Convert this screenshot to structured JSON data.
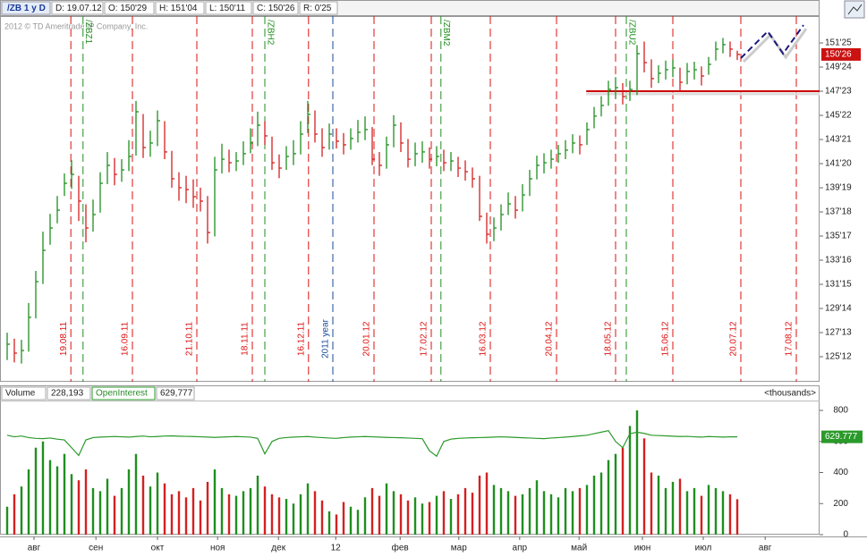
{
  "header": {
    "symbol": "/ZB 1 y D",
    "date": "D: 19.07.12",
    "open": "O: 150'29",
    "high": "H: 151'04",
    "low": "L: 150'11",
    "close": "C: 150'26",
    "range": "R: 0'25",
    "copyright": "2012 © TD Ameritrade IP Company, Inc."
  },
  "chart_data": [
    {
      "type": "ohlc",
      "up_color": "#1f8f1f",
      "down_color": "#d42020",
      "xlim": [
        -1,
        113.5
      ],
      "ylim": [
        123.27,
        154.04
      ],
      "high": [
        127.4,
        126.9,
        126.8,
        129.9,
        132.6,
        135.9,
        137.4,
        138.9,
        140.8,
        141.9,
        140.6,
        138.2,
        138.6,
        140.9,
        142.6,
        142.1,
        142.0,
        143.6,
        146.9,
        145.8,
        144.4,
        146.1,
        145.2,
        142.7,
        140.9,
        140.6,
        140.3,
        139.6,
        138.9,
        142.2,
        143.3,
        142.8,
        142.6,
        143.5,
        144.6,
        146.0,
        145.2,
        143.9,
        142.4,
        143.1,
        143.6,
        145.2,
        146.9,
        146.1,
        144.6,
        145.0,
        144.6,
        144.2,
        144.6,
        145.3,
        145.6,
        144.7,
        142.6,
        143.9,
        145.7,
        145.1,
        143.7,
        143.4,
        143.5,
        143.0,
        143.1,
        142.8,
        142.6,
        142.2,
        141.9,
        141.3,
        140.6,
        137.5,
        137.1,
        138.2,
        139.2,
        138.9,
        139.9,
        141.1,
        142.3,
        142.5,
        142.8,
        143.2,
        143.6,
        144.1,
        144.0,
        145.1,
        146.4,
        147.3,
        148.6,
        148.9,
        148.4,
        148.6,
        151.6,
        151.9,
        150.4,
        149.9,
        150.3,
        150.4,
        149.7,
        150.1,
        150.2,
        149.8,
        150.6,
        151.9,
        152.2,
        151.9,
        151.125
      ],
      "low": [
        125.1,
        124.9,
        124.8,
        125.8,
        128.6,
        131.5,
        134.8,
        136.6,
        138.9,
        139.5,
        136.8,
        135.0,
        135.9,
        137.5,
        139.9,
        139.8,
        140.1,
        141.0,
        142.3,
        142.1,
        142.2,
        143.1,
        142.0,
        139.6,
        138.5,
        138.3,
        137.9,
        137.6,
        134.9,
        135.5,
        140.8,
        140.9,
        141.0,
        141.5,
        142.5,
        143.1,
        143.2,
        141.1,
        140.4,
        141.1,
        141.5,
        142.4,
        144.2,
        143.4,
        142.2,
        142.8,
        142.9,
        142.4,
        142.8,
        143.4,
        143.6,
        141.5,
        140.6,
        141.2,
        143.0,
        142.6,
        141.3,
        141.4,
        141.7,
        141.2,
        141.4,
        141.0,
        141.0,
        140.5,
        140.2,
        139.6,
        136.8,
        134.9,
        135.1,
        136.0,
        137.3,
        137.0,
        137.6,
        138.9,
        140.3,
        140.8,
        141.2,
        141.7,
        142.0,
        142.5,
        142.4,
        143.2,
        144.6,
        145.6,
        146.5,
        147.1,
        146.6,
        146.9,
        147.4,
        149.3,
        148.0,
        148.4,
        148.7,
        148.9,
        147.7,
        148.3,
        148.7,
        148.2,
        149.1,
        150.3,
        150.9,
        150.6,
        150.34375
      ],
      "close": [
        126.43,
        125.68,
        125.9,
        128.69,
        131.7,
        134.33,
        136.21,
        137.71,
        139.97,
        140.72,
        138.47,
        136.21,
        137.34,
        139.97,
        141.48,
        140.72,
        141.1,
        142.23,
        145.99,
        142.98,
        143.36,
        145.24,
        142.61,
        140.35,
        139.6,
        139.45,
        138.84,
        138.47,
        135.83,
        141.1,
        142.0,
        141.7,
        141.85,
        142.46,
        143.36,
        144.86,
        143.96,
        141.7,
        141.25,
        142.23,
        142.46,
        144.11,
        145.77,
        144.11,
        142.98,
        144.11,
        143.51,
        143.21,
        143.74,
        144.26,
        144.49,
        142.0,
        141.48,
        143.21,
        144.86,
        143.36,
        142.0,
        142.46,
        142.61,
        142.0,
        142.23,
        141.7,
        141.85,
        141.25,
        140.95,
        140.35,
        137.19,
        135.68,
        136.21,
        137.34,
        138.24,
        137.71,
        138.99,
        140.35,
        141.48,
        141.7,
        142.0,
        142.46,
        142.76,
        143.36,
        143.21,
        144.49,
        145.62,
        146.52,
        147.87,
        148.02,
        147.27,
        147.87,
        150.88,
        150.13,
        148.78,
        149.23,
        149.53,
        149.68,
        148.47,
        149.38,
        149.53,
        149.0,
        149.98,
        151.26,
        151.64,
        151.26,
        150.8125
      ],
      "yticks": [
        {
          "value": 125.375,
          "label": "125'12"
        },
        {
          "value": 127.40625,
          "label": "127'13"
        },
        {
          "value": 129.4375,
          "label": "129'14"
        },
        {
          "value": 131.46875,
          "label": "131'15"
        },
        {
          "value": 133.5,
          "label": "133'16"
        },
        {
          "value": 135.53125,
          "label": "135'17"
        },
        {
          "value": 137.5625,
          "label": "137'18"
        },
        {
          "value": 139.59375,
          "label": "139'19"
        },
        {
          "value": 141.625,
          "label": "141'20"
        },
        {
          "value": 143.65625,
          "label": "143'21"
        },
        {
          "value": 145.6875,
          "label": "145'22"
        },
        {
          "value": 147.71875,
          "label": "147'23"
        },
        {
          "value": 149.75,
          "label": "149'24"
        },
        {
          "value": 151.78125,
          "label": "151'25"
        }
      ],
      "last_price": {
        "value": 150.8125,
        "label": "150'26"
      },
      "last_color": "#cc1111",
      "support": {
        "value": 147.72,
        "from": 80.9,
        "color": "#cc0000"
      },
      "projection": {
        "x": [
          102.5,
          106.25,
          108.4,
          111.25
        ],
        "y": [
          150.5,
          152.75,
          150.88,
          153.28
        ],
        "color": "#1a1a7a"
      },
      "events": [
        {
          "label": "19.08.11",
          "x": 8.9,
          "color": "#dd1111"
        },
        {
          "label": "16.09.11",
          "x": 17.5,
          "color": "#dd1111"
        },
        {
          "label": "21.10.11",
          "x": 26.5,
          "color": "#dd1111"
        },
        {
          "label": "18.11.11",
          "x": 34.25,
          "color": "#dd1111"
        },
        {
          "label": "16.12.11",
          "x": 42.1,
          "color": "#dd1111"
        },
        {
          "label": "20.01.12",
          "x": 51.25,
          "color": "#dd1111"
        },
        {
          "label": "17.02.12",
          "x": 59.25,
          "color": "#dd1111"
        },
        {
          "label": "16.03.12",
          "x": 67.5,
          "color": "#dd1111"
        },
        {
          "label": "20.04.12",
          "x": 76.75,
          "color": "#dd1111"
        },
        {
          "label": "18.05.12",
          "x": 85,
          "color": "#dd1111"
        },
        {
          "label": "15.06.12",
          "x": 93,
          "color": "#dd1111"
        },
        {
          "label": "20.07.12",
          "x": 102.5,
          "color": "#dd1111"
        },
        {
          "label": "17.08.12",
          "x": 110.25,
          "color": "#dd1111"
        },
        {
          "label": "/ZBZ1",
          "x": 10.6,
          "color": "#1f8f1f",
          "top": true
        },
        {
          "label": "/ZBH2",
          "x": 36,
          "color": "#1f8f1f",
          "top": true
        },
        {
          "label": "/ZBM2",
          "x": 60.6,
          "color": "#1f8f1f",
          "top": true
        },
        {
          "label": "/ZBU2",
          "x": 86.5,
          "color": "#1f8f1f",
          "top": true
        },
        {
          "label": "2011 year",
          "x": 45.5,
          "color": "#1a4a9a"
        }
      ]
    },
    {
      "type": "volume",
      "xlim": [
        -1,
        113.5
      ],
      "ylim": [
        0,
        852
      ],
      "yticks": [
        0,
        200,
        400,
        600,
        800
      ],
      "unit_label": "<thousands>",
      "series": [
        {
          "name": "Volume",
          "header_label": "228,193",
          "values": [
            180,
            260,
            310,
            420,
            560,
            600,
            480,
            440,
            520,
            390,
            350,
            420,
            300,
            280,
            360,
            250,
            300,
            420,
            520,
            380,
            310,
            400,
            330,
            260,
            280,
            240,
            300,
            220,
            340,
            420,
            300,
            260,
            250,
            280,
            300,
            380,
            310,
            260,
            240,
            230,
            200,
            260,
            330,
            280,
            220,
            150,
            130,
            210,
            180,
            160,
            240,
            300,
            250,
            330,
            280,
            260,
            220,
            240,
            200,
            210,
            250,
            280,
            230,
            260,
            300,
            270,
            380,
            400,
            320,
            300,
            280,
            250,
            260,
            300,
            350,
            280,
            260,
            240,
            300,
            280,
            300,
            320,
            380,
            400,
            480,
            520,
            560,
            700,
            800,
            620,
            400,
            380,
            300,
            340,
            360,
            280,
            300,
            250,
            320,
            300,
            280,
            260,
            228.193
          ]
        },
        {
          "name": "OpenInterest",
          "color": "#2a9a2a",
          "header_label": "629,777",
          "last_label": "629.777",
          "values": [
            640,
            630,
            635,
            625,
            620,
            618,
            622,
            615,
            610,
            560,
            510,
            610,
            625,
            628,
            630,
            632,
            630,
            628,
            632,
            635,
            630,
            632,
            635,
            636,
            634,
            633,
            632,
            630,
            628,
            626,
            628,
            630,
            632,
            630,
            628,
            620,
            520,
            600,
            620,
            625,
            628,
            630,
            632,
            628,
            625,
            622,
            620,
            625,
            628,
            630,
            632,
            630,
            628,
            626,
            625,
            624,
            622,
            620,
            618,
            540,
            505,
            600,
            615,
            620,
            622,
            624,
            625,
            626,
            628,
            630,
            628,
            626,
            624,
            622,
            620,
            618,
            622,
            625,
            628,
            632,
            636,
            640,
            650,
            660,
            670,
            600,
            560,
            650,
            660,
            652,
            640,
            638,
            636,
            634,
            632,
            633,
            630,
            628,
            632,
            630,
            628,
            630,
            629.777
          ]
        }
      ],
      "xticks": [
        {
          "value": 3.75,
          "label": "авг"
        },
        {
          "value": 12.4,
          "label": "сен"
        },
        {
          "value": 21,
          "label": "окт"
        },
        {
          "value": 29.4,
          "label": "ноя"
        },
        {
          "value": 37.9,
          "label": "дек"
        },
        {
          "value": 45.9,
          "label": "12"
        },
        {
          "value": 54.9,
          "label": "фев"
        },
        {
          "value": 63.1,
          "label": "мар"
        },
        {
          "value": 71.6,
          "label": "апр"
        },
        {
          "value": 79.9,
          "label": "май"
        },
        {
          "value": 88.75,
          "label": "июн"
        },
        {
          "value": 97.25,
          "label": "июл"
        },
        {
          "value": 105.9,
          "label": "авг"
        }
      ]
    }
  ]
}
